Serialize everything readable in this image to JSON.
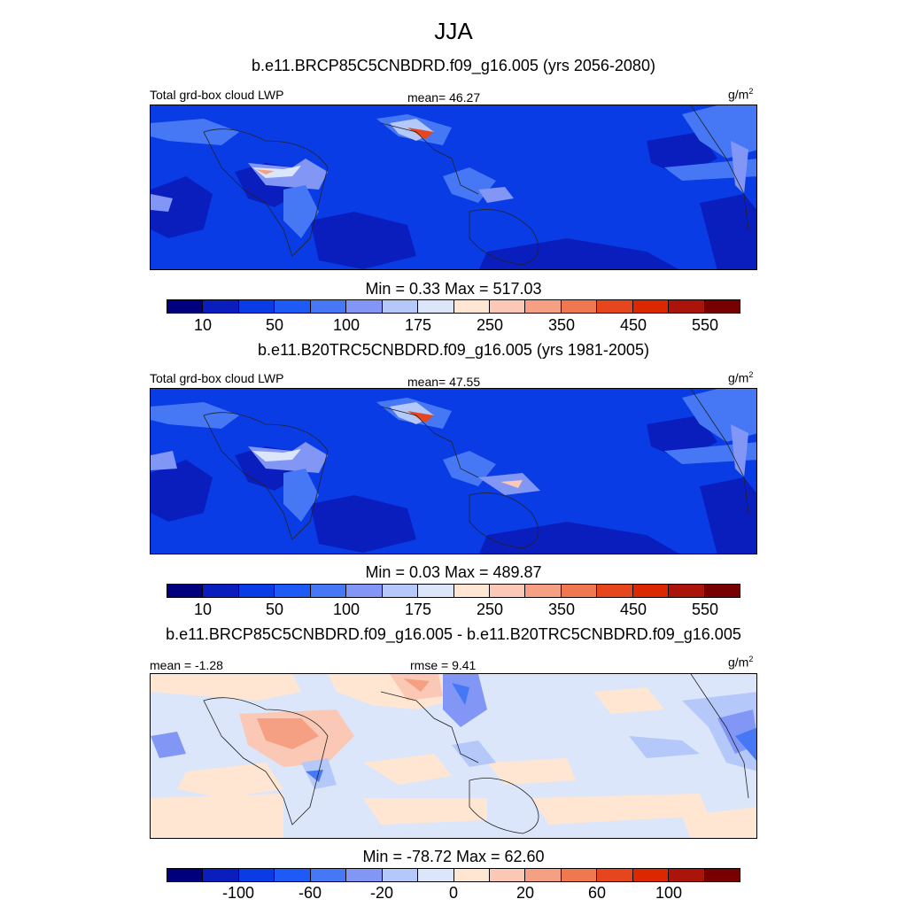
{
  "figure_title": "JJA",
  "panels": [
    {
      "case_title": "b.e11.BRCP85C5CNBDRD.f09_g16.005 (yrs 2056-2080)",
      "left_label": "Total grd-box cloud LWP",
      "center_label": "mean=  46.27",
      "units_base": "g/m",
      "units_sup": "2",
      "min_max": "Min =    0.33 Max = 517.03",
      "colorbar_ticks": [
        "10",
        "50",
        "100",
        "175",
        "250",
        "350",
        "450",
        "550"
      ]
    },
    {
      "case_title": "b.e11.B20TRC5CNBDRD.f09_g16.005 (yrs 1981-2005)",
      "left_label": "Total grd-box cloud LWP",
      "center_label": "mean=  47.55",
      "units_base": "g/m",
      "units_sup": "2",
      "min_max": "Min =    0.03 Max = 489.87",
      "colorbar_ticks": [
        "10",
        "50",
        "100",
        "175",
        "250",
        "350",
        "450",
        "550"
      ]
    },
    {
      "case_title": "b.e11.BRCP85C5CNBDRD.f09_g16.005 - b.e11.B20TRC5CNBDRD.f09_g16.005",
      "left_label": "mean =  -1.28",
      "center_label": "rmse =   9.41",
      "units_base": "g/m",
      "units_sup": "2",
      "min_max": "Min = -78.72 Max =  62.60",
      "colorbar_ticks": [
        "-100",
        "-60",
        "-20",
        "0",
        "20",
        "60",
        "100"
      ]
    }
  ],
  "chart_data": [
    {
      "type": "heatmap",
      "title": "b.e11.BRCP85C5CNBDRD.f09_g16.005 (yrs 2056-2080)",
      "variable": "Total grd-box cloud LWP",
      "units": "g/m2",
      "mean": 46.27,
      "min": 0.33,
      "max": 517.03,
      "contour_levels": [
        10,
        25,
        50,
        75,
        100,
        125,
        175,
        200,
        250,
        300,
        350,
        400,
        450,
        500,
        550
      ],
      "colors": [
        "#00007f",
        "#0a1ebe",
        "#0a3ce6",
        "#1e5af5",
        "#4678f5",
        "#8296f5",
        "#b4c8fa",
        "#dce6fa",
        "#ffe6d2",
        "#fac8b4",
        "#f5a082",
        "#f07850",
        "#e6461e",
        "#dc2800",
        "#aa140a",
        "#780000"
      ]
    },
    {
      "type": "heatmap",
      "title": "b.e11.B20TRC5CNBDRD.f09_g16.005 (yrs 1981-2005)",
      "variable": "Total grd-box cloud LWP",
      "units": "g/m2",
      "mean": 47.55,
      "min": 0.03,
      "max": 489.87,
      "contour_levels": [
        10,
        25,
        50,
        75,
        100,
        125,
        175,
        200,
        250,
        300,
        350,
        400,
        450,
        500,
        550
      ],
      "colors": [
        "#00007f",
        "#0a1ebe",
        "#0a3ce6",
        "#1e5af5",
        "#4678f5",
        "#8296f5",
        "#b4c8fa",
        "#dce6fa",
        "#ffe6d2",
        "#fac8b4",
        "#f5a082",
        "#f07850",
        "#e6461e",
        "#dc2800",
        "#aa140a",
        "#780000"
      ]
    },
    {
      "type": "heatmap",
      "title": "b.e11.BRCP85C5CNBDRD.f09_g16.005 - b.e11.B20TRC5CNBDRD.f09_g16.005",
      "units": "g/m2",
      "mean": -1.28,
      "rmse": 9.41,
      "min": -78.72,
      "max": 62.6,
      "contour_levels": [
        -120,
        -100,
        -80,
        -60,
        -40,
        -20,
        -10,
        0,
        10,
        20,
        40,
        60,
        80,
        100,
        120
      ],
      "colors": [
        "#00007f",
        "#0a1ebe",
        "#0a3ce6",
        "#1e5af5",
        "#4678f5",
        "#8296f5",
        "#b4c8fa",
        "#dce6fa",
        "#ffe6d2",
        "#fac8b4",
        "#f5a082",
        "#f07850",
        "#e6461e",
        "#dc2800",
        "#aa140a",
        "#780000"
      ]
    }
  ]
}
